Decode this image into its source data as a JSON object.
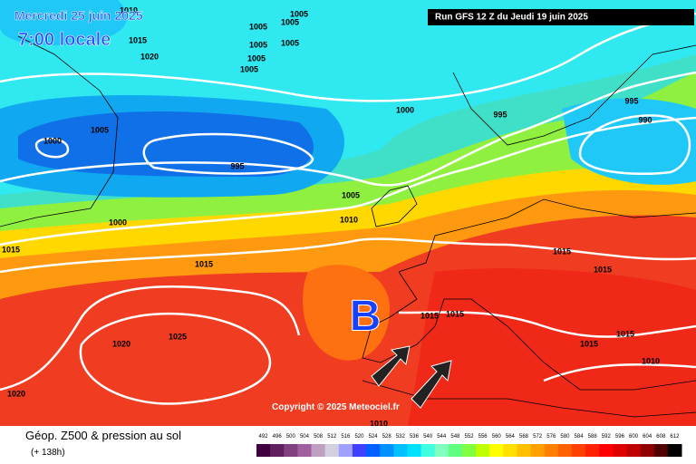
{
  "header": {
    "valid_date": "Mercredi 25 juin 2025",
    "local_time": "7:00 locale",
    "run": "Run GFS 12 Z du Jeudi 19 juin 2025"
  },
  "map": {
    "low_marker": "B",
    "copyright": "Copyright © 2025 Meteociel.fr",
    "isobar_labels": [
      1010,
      1005,
      1015,
      1020,
      1005,
      1005,
      1005,
      1005,
      1005,
      1005,
      1000,
      995,
      995,
      990,
      1000,
      1005,
      995,
      1005,
      1010,
      1000,
      1015,
      1015,
      1015,
      1015,
      1015,
      1015,
      1020,
      1025,
      1015,
      1015,
      1010,
      1020,
      1010
    ]
  },
  "legend": {
    "title": "Géop. Z500 & pression au sol",
    "lead_time": "(+ 138h)",
    "ticks": [
      492,
      496,
      500,
      504,
      508,
      512,
      516,
      520,
      524,
      528,
      532,
      536,
      540,
      544,
      548,
      552,
      556,
      560,
      564,
      568,
      572,
      576,
      580,
      584,
      588,
      592,
      596,
      600,
      604,
      608,
      612
    ],
    "colors": [
      "#400040",
      "#602060",
      "#804080",
      "#a060a0",
      "#c0a0c0",
      "#d0d0e0",
      "#a0a0ff",
      "#4040ff",
      "#0060ff",
      "#0090ff",
      "#00c0ff",
      "#00e0ff",
      "#40ffe0",
      "#80ffc0",
      "#60ff80",
      "#80ff40",
      "#c0ff00",
      "#ffff00",
      "#ffe000",
      "#ffc000",
      "#ffa000",
      "#ff8000",
      "#ff6000",
      "#ff4000",
      "#ff2000",
      "#ff0000",
      "#e00000",
      "#c00000",
      "#900000",
      "#500000",
      "#000000"
    ]
  }
}
